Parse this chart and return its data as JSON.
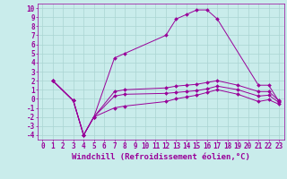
{
  "title": "",
  "xlabel": "Windchill (Refroidissement éolien,°C)",
  "ylabel": "",
  "xlim": [
    -0.5,
    23.5
  ],
  "ylim": [
    -4.5,
    10.5
  ],
  "xticks": [
    0,
    1,
    2,
    3,
    4,
    5,
    6,
    7,
    8,
    9,
    10,
    11,
    12,
    13,
    14,
    15,
    16,
    17,
    18,
    19,
    20,
    21,
    22,
    23
  ],
  "yticks": [
    -4,
    -3,
    -2,
    -1,
    0,
    1,
    2,
    3,
    4,
    5,
    6,
    7,
    8,
    9,
    10
  ],
  "bg_color": "#c9eceb",
  "line_color": "#990099",
  "grid_color": "#aad4d2",
  "lines": [
    {
      "x": [
        1,
        3,
        4,
        5,
        7,
        8,
        12,
        13,
        14,
        15,
        16,
        17,
        21,
        22,
        23
      ],
      "y": [
        2,
        -0.2,
        -4,
        -2,
        4.5,
        5,
        7,
        8.8,
        9.3,
        9.8,
        9.8,
        8.8,
        1.5,
        1.5,
        -0.3
      ]
    },
    {
      "x": [
        1,
        3,
        4,
        5,
        7,
        8,
        12,
        13,
        14,
        15,
        16,
        17,
        19,
        21,
        22,
        23
      ],
      "y": [
        2,
        -0.2,
        -4,
        -2,
        0.8,
        1.0,
        1.2,
        1.4,
        1.5,
        1.6,
        1.8,
        2.0,
        1.5,
        0.8,
        0.8,
        -0.2
      ]
    },
    {
      "x": [
        1,
        3,
        4,
        5,
        7,
        8,
        12,
        13,
        14,
        15,
        16,
        17,
        19,
        21,
        22,
        23
      ],
      "y": [
        2,
        -0.2,
        -4,
        -2,
        0.3,
        0.5,
        0.6,
        0.7,
        0.8,
        0.9,
        1.1,
        1.4,
        1.0,
        0.3,
        0.4,
        -0.4
      ]
    },
    {
      "x": [
        1,
        3,
        4,
        5,
        7,
        8,
        12,
        13,
        14,
        15,
        16,
        17,
        19,
        21,
        22,
        23
      ],
      "y": [
        2,
        -0.2,
        -4,
        -2,
        -1.0,
        -0.8,
        -0.3,
        0.0,
        0.2,
        0.4,
        0.7,
        1.0,
        0.5,
        -0.3,
        -0.1,
        -0.6
      ]
    }
  ],
  "font_size": 6.5,
  "tick_font_size": 5.5,
  "xlabel_fontsize": 6.5
}
